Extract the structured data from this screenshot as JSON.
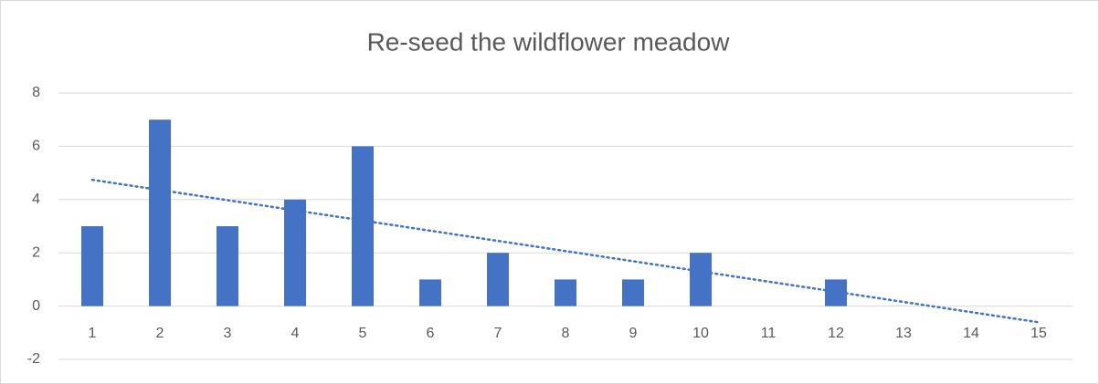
{
  "chart_data": {
    "type": "bar",
    "title": "Re-seed the wildflower meadow",
    "categories": [
      "1",
      "2",
      "3",
      "4",
      "5",
      "6",
      "7",
      "8",
      "9",
      "10",
      "11",
      "12",
      "13",
      "14",
      "15"
    ],
    "values": [
      3,
      7,
      3,
      4,
      6,
      1,
      2,
      1,
      1,
      2,
      0,
      1,
      0,
      0,
      0
    ],
    "color": "#4472c4",
    "ylim": [
      -2,
      8
    ],
    "yticks": [
      -2,
      0,
      2,
      4,
      6,
      8
    ],
    "grid": true,
    "trendline": {
      "type": "linear",
      "color": "#4472c4",
      "style": "dotted"
    }
  }
}
